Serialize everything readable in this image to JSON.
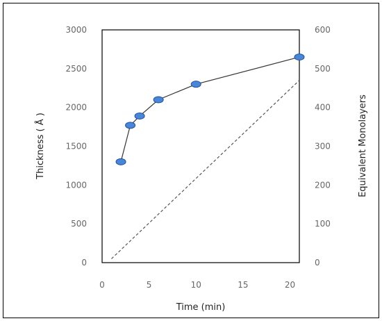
{
  "chart_data": {
    "type": "line",
    "title": "",
    "xlabel": "Time (min)",
    "ylabel": "Thickness ( Å )",
    "y2label": "Equivalent  Monolayers",
    "xlim": [
      0,
      21
    ],
    "ylim": [
      0,
      3000
    ],
    "y2lim": [
      0,
      600
    ],
    "x_ticks": [
      "0",
      "5",
      "10",
      "15",
      "20"
    ],
    "y_ticks": [
      "0",
      "500",
      "1000",
      "1500",
      "2000",
      "2500",
      "3000"
    ],
    "y2_ticks": [
      "0",
      "100",
      "200",
      "300",
      "400",
      "500",
      "600"
    ],
    "grid": false,
    "legend": "none",
    "series": [
      {
        "axis": "left",
        "style": "solid line with filled circle markers",
        "color": "#4a86d8",
        "x": [
          2,
          3,
          4,
          6,
          10,
          21
        ],
        "y": [
          1300,
          1770,
          1890,
          2100,
          2300,
          2650
        ]
      },
      {
        "axis": "right",
        "style": "dashed line",
        "color": "#555555",
        "x": [
          1,
          21
        ],
        "y": [
          10,
          470
        ]
      }
    ]
  }
}
